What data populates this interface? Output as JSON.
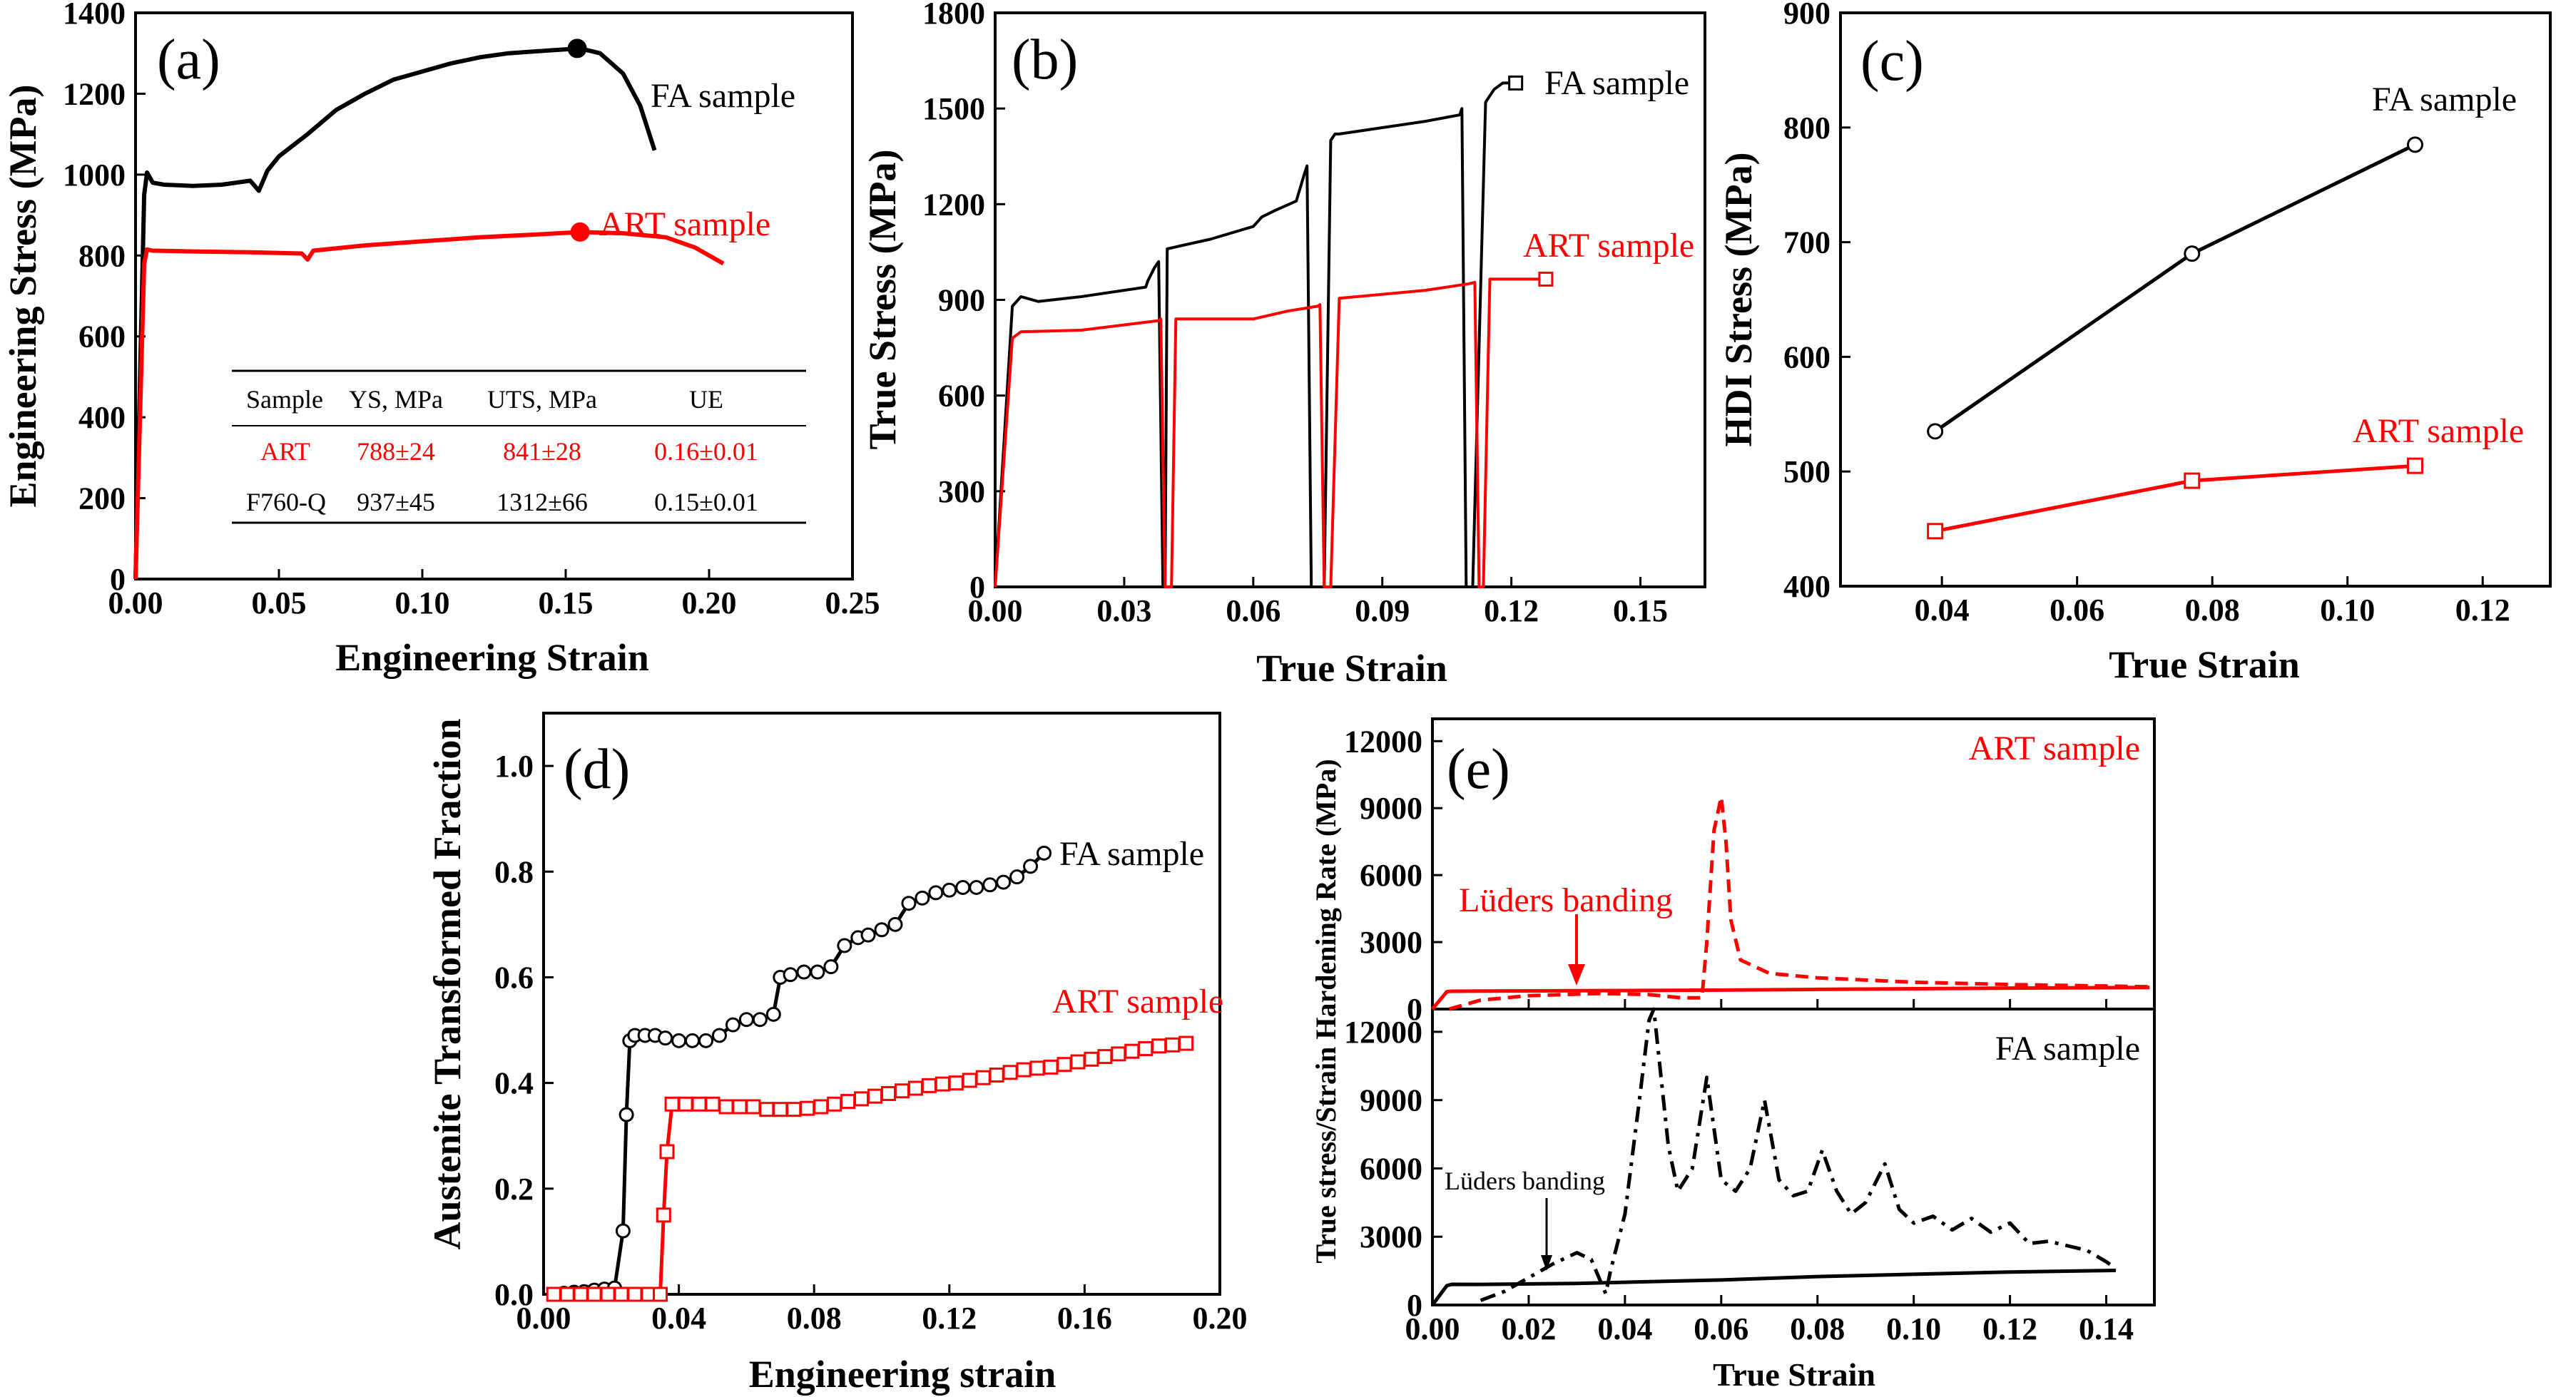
{
  "chart_data": [
    {
      "panel": "(a)",
      "type": "line",
      "xlabel": "Engineering Strain",
      "ylabel": "Engineering Stress (MPa)",
      "xlim": [
        0,
        0.25
      ],
      "ylim": [
        0,
        1400
      ],
      "xticks": [
        "0.00",
        "0.05",
        "0.10",
        "0.15",
        "0.20",
        "0.25"
      ],
      "yticks": [
        "0",
        "200",
        "400",
        "600",
        "800",
        "1000",
        "1200",
        "1400"
      ],
      "series": [
        {
          "name": "FA sample",
          "color": "#000000",
          "x": [
            0,
            0.003,
            0.004,
            0.006,
            0.01,
            0.02,
            0.03,
            0.04,
            0.043,
            0.046,
            0.05,
            0.06,
            0.07,
            0.08,
            0.09,
            0.1,
            0.11,
            0.12,
            0.13,
            0.14,
            0.155,
            0.162,
            0.17,
            0.176,
            0.181
          ],
          "y": [
            0,
            950,
            1005,
            980,
            975,
            972,
            975,
            985,
            960,
            1010,
            1045,
            1100,
            1160,
            1200,
            1235,
            1255,
            1275,
            1290,
            1300,
            1305,
            1312,
            1300,
            1250,
            1170,
            1060
          ]
        },
        {
          "name": "ART sample",
          "color": "#ff0000",
          "x": [
            0,
            0.003,
            0.004,
            0.006,
            0.02,
            0.04,
            0.058,
            0.06,
            0.062,
            0.08,
            0.1,
            0.12,
            0.14,
            0.155,
            0.17,
            0.185,
            0.195,
            0.205
          ],
          "y": [
            0,
            780,
            815,
            812,
            810,
            808,
            805,
            790,
            812,
            825,
            835,
            845,
            852,
            858,
            855,
            845,
            820,
            780
          ]
        }
      ],
      "markers": [
        {
          "x": 0.154,
          "y": 1312,
          "color": "#000000"
        },
        {
          "x": 0.155,
          "y": 858,
          "color": "#ff0000"
        }
      ],
      "table": {
        "headers": [
          "Sample",
          "YS, MPa",
          "UTS, MPa",
          "UE"
        ],
        "rows": [
          {
            "cells": [
              "ART",
              "788±24",
              "841±28",
              "0.16±0.01"
            ],
            "color": "#ff0000"
          },
          {
            "cells": [
              "F760-Q",
              "937±45",
              "1312±66",
              "0.15±0.01"
            ],
            "color": "#000000"
          }
        ]
      }
    },
    {
      "panel": "(b)",
      "type": "line",
      "xlabel": "True Strain",
      "ylabel": "True Stress (MPa)",
      "xlim": [
        0,
        0.165
      ],
      "ylim": [
        0,
        1800
      ],
      "xticks": [
        "0.00",
        "0.03",
        "0.06",
        "0.09",
        "0.12",
        "0.15"
      ],
      "yticks": [
        "0",
        "300",
        "600",
        "900",
        "1200",
        "1500",
        "1800"
      ],
      "series": [
        {
          "name": "FA sample",
          "color": "#000000",
          "x": [
            0,
            0.004,
            0.006,
            0.01,
            0.02,
            0.035,
            0.0355,
            0.037,
            0.038,
            0.039,
            0.0395,
            0.04,
            0.05,
            0.06,
            0.062,
            0.065,
            0.07,
            0.072,
            0.0725,
            0.0735,
            0.0765,
            0.078,
            0.079,
            0.08,
            0.09,
            0.1,
            0.108,
            0.1085,
            0.1095,
            0.111,
            0.114,
            0.115,
            0.116,
            0.118,
            0.12
          ],
          "y": [
            0,
            880,
            910,
            895,
            910,
            940,
            960,
            1000,
            1020,
            0,
            0,
            1060,
            1090,
            1130,
            1160,
            1180,
            1210,
            1300,
            1320,
            0,
            0,
            1400,
            1420,
            1420,
            1440,
            1460,
            1480,
            1500,
            0,
            0,
            1520,
            1540,
            1560,
            1580,
            1580
          ]
        },
        {
          "name": "ART sample",
          "color": "#ff0000",
          "x": [
            0,
            0.004,
            0.006,
            0.02,
            0.038,
            0.0385,
            0.0395,
            0.041,
            0.042,
            0.06,
            0.068,
            0.075,
            0.0755,
            0.0765,
            0.078,
            0.08,
            0.1,
            0.11,
            0.1115,
            0.1125,
            0.1135,
            0.115,
            0.128
          ],
          "y": [
            0,
            780,
            800,
            805,
            835,
            840,
            0,
            0,
            840,
            840,
            865,
            880,
            885,
            0,
            0,
            905,
            930,
            950,
            955,
            0,
            0,
            965,
            965
          ]
        }
      ],
      "markers": [
        {
          "x": 0.121,
          "y": 1580,
          "color": "#000000"
        },
        {
          "x": 0.128,
          "y": 965,
          "color": "#ff0000"
        }
      ]
    },
    {
      "panel": "(c)",
      "type": "line",
      "xlabel": "True Strain",
      "ylabel": "HDI Stress (MPa)",
      "xlim": [
        0.025,
        0.13
      ],
      "ylim": [
        400,
        900
      ],
      "xticks": [
        "0.04",
        "0.06",
        "0.08",
        "0.10",
        "0.12"
      ],
      "yticks": [
        "400",
        "500",
        "600",
        "700",
        "800",
        "900"
      ],
      "series": [
        {
          "name": "FA sample",
          "color": "#000000",
          "marker": "circle",
          "x": [
            0.039,
            0.077,
            0.11
          ],
          "y": [
            535,
            690,
            785
          ]
        },
        {
          "name": "ART sample",
          "color": "#ff0000",
          "marker": "square",
          "x": [
            0.039,
            0.077,
            0.11
          ],
          "y": [
            448,
            492,
            505
          ]
        }
      ]
    },
    {
      "panel": "(d)",
      "type": "scatter",
      "xlabel": "Engineering strain",
      "ylabel": "Austenite Transformed Fraction",
      "xlim": [
        0,
        0.2
      ],
      "ylim": [
        0,
        1.1
      ],
      "xticks": [
        "0.00",
        "0.04",
        "0.08",
        "0.12",
        "0.16",
        "0.20"
      ],
      "yticks": [
        "0.0",
        "0.2",
        "0.4",
        "0.6",
        "0.8",
        "1.0"
      ],
      "series": [
        {
          "name": "FA sample",
          "color": "#000000",
          "marker": "circle",
          "x": [
            0.003,
            0.006,
            0.009,
            0.012,
            0.015,
            0.018,
            0.021,
            0.0235,
            0.0245,
            0.0255,
            0.027,
            0.03,
            0.033,
            0.036,
            0.04,
            0.044,
            0.048,
            0.052,
            0.056,
            0.06,
            0.064,
            0.068,
            0.07,
            0.073,
            0.077,
            0.081,
            0.085,
            0.089,
            0.093,
            0.096,
            0.1,
            0.104,
            0.108,
            0.112,
            0.116,
            0.12,
            0.124,
            0.128,
            0.132,
            0.136,
            0.14,
            0.144,
            0.148
          ],
          "y": [
            0.0,
            0.002,
            0.004,
            0.005,
            0.008,
            0.01,
            0.012,
            0.12,
            0.34,
            0.48,
            0.49,
            0.49,
            0.49,
            0.485,
            0.48,
            0.48,
            0.48,
            0.49,
            0.51,
            0.52,
            0.52,
            0.53,
            0.6,
            0.605,
            0.61,
            0.61,
            0.62,
            0.66,
            0.675,
            0.68,
            0.69,
            0.7,
            0.74,
            0.75,
            0.76,
            0.765,
            0.77,
            0.77,
            0.775,
            0.78,
            0.79,
            0.81,
            0.835
          ]
        },
        {
          "name": "ART sample",
          "color": "#ff0000",
          "marker": "square",
          "x": [
            0.003,
            0.007,
            0.011,
            0.015,
            0.019,
            0.023,
            0.027,
            0.031,
            0.0345,
            0.0355,
            0.0365,
            0.038,
            0.042,
            0.046,
            0.05,
            0.054,
            0.058,
            0.062,
            0.066,
            0.07,
            0.074,
            0.078,
            0.082,
            0.086,
            0.09,
            0.094,
            0.098,
            0.102,
            0.106,
            0.11,
            0.114,
            0.118,
            0.122,
            0.126,
            0.13,
            0.134,
            0.138,
            0.142,
            0.146,
            0.15,
            0.154,
            0.158,
            0.162,
            0.166,
            0.17,
            0.174,
            0.178,
            0.182,
            0.186,
            0.19
          ],
          "y": [
            0,
            0,
            0,
            0,
            0,
            0,
            0,
            0,
            0.0,
            0.15,
            0.27,
            0.36,
            0.36,
            0.36,
            0.36,
            0.355,
            0.355,
            0.355,
            0.35,
            0.35,
            0.35,
            0.352,
            0.355,
            0.36,
            0.365,
            0.37,
            0.375,
            0.38,
            0.385,
            0.39,
            0.395,
            0.398,
            0.4,
            0.405,
            0.41,
            0.415,
            0.42,
            0.425,
            0.428,
            0.43,
            0.435,
            0.44,
            0.445,
            0.45,
            0.455,
            0.46,
            0.465,
            0.47,
            0.472,
            0.475
          ]
        }
      ]
    },
    {
      "panel": "(e)",
      "type": "line",
      "xlabel": "True Strain",
      "ylabel": "True stress/Strain Hardening Rate (MPa)",
      "xlim": [
        0,
        0.15
      ],
      "xticks": [
        "0.00",
        "0.02",
        "0.04",
        "0.06",
        "0.08",
        "0.10",
        "0.12",
        "0.14"
      ],
      "subplots": [
        {
          "name": "ART sample",
          "ylim": [
            0,
            13000
          ],
          "yticks": [
            "0",
            "3000",
            "6000",
            "9000",
            "12000"
          ],
          "annotation": "Lüders banding",
          "series": [
            {
              "style": "solid",
              "color": "#ff0000",
              "x": [
                0,
                0.003,
                0.004,
                0.01,
                0.03,
                0.06,
                0.08,
                0.1,
                0.12,
                0.149
              ],
              "y": [
                0,
                780,
                800,
                805,
                820,
                850,
                880,
                910,
                940,
                965
              ]
            },
            {
              "style": "dashed",
              "color": "#ff0000",
              "x": [
                0.0035,
                0.01,
                0.02,
                0.035,
                0.045,
                0.052,
                0.056,
                0.057,
                0.0585,
                0.06,
                0.061,
                0.062,
                0.064,
                0.07,
                0.08,
                0.1,
                0.12,
                0.149
              ],
              "y": [
                0,
                400,
                600,
                700,
                650,
                500,
                500,
                3000,
                8000,
                9500,
                7500,
                4000,
                2200,
                1600,
                1400,
                1200,
                1100,
                1000
              ]
            }
          ]
        },
        {
          "name": "FA sample",
          "ylim": [
            0,
            13000
          ],
          "yticks": [
            "0",
            "3000",
            "6000",
            "9000",
            "12000"
          ],
          "annotation": "Lüders banding",
          "series": [
            {
              "style": "solid",
              "color": "#000000",
              "x": [
                0,
                0.003,
                0.004,
                0.01,
                0.03,
                0.06,
                0.08,
                0.1,
                0.12,
                0.142
              ],
              "y": [
                0,
                850,
                910,
                905,
                950,
                1100,
                1250,
                1350,
                1450,
                1520
              ]
            },
            {
              "style": "dashdot",
              "color": "#000000",
              "x": [
                0.01,
                0.015,
                0.02,
                0.025,
                0.03,
                0.033,
                0.036,
                0.037,
                0.04,
                0.043,
                0.045,
                0.046,
                0.047,
                0.049,
                0.051,
                0.054,
                0.057,
                0.06,
                0.063,
                0.066,
                0.069,
                0.072,
                0.075,
                0.078,
                0.081,
                0.084,
                0.087,
                0.09,
                0.094,
                0.097,
                0.1,
                0.104,
                0.108,
                0.112,
                0.116,
                0.12,
                0.124,
                0.128,
                0.132,
                0.136,
                0.14,
                0.142
              ],
              "y": [
                200,
                600,
                1200,
                1800,
                2300,
                2000,
                500,
                1500,
                4000,
                9000,
                12500,
                13000,
                11000,
                7000,
                5000,
                6000,
                10000,
                5500,
                5000,
                6000,
                9000,
                5500,
                4800,
                5000,
                6800,
                5000,
                4000,
                4500,
                6200,
                4200,
                3600,
                3900,
                3300,
                3800,
                3200,
                3600,
                2700,
                2800,
                2600,
                2400,
                1900,
                1600
              ]
            }
          ]
        }
      ]
    }
  ]
}
